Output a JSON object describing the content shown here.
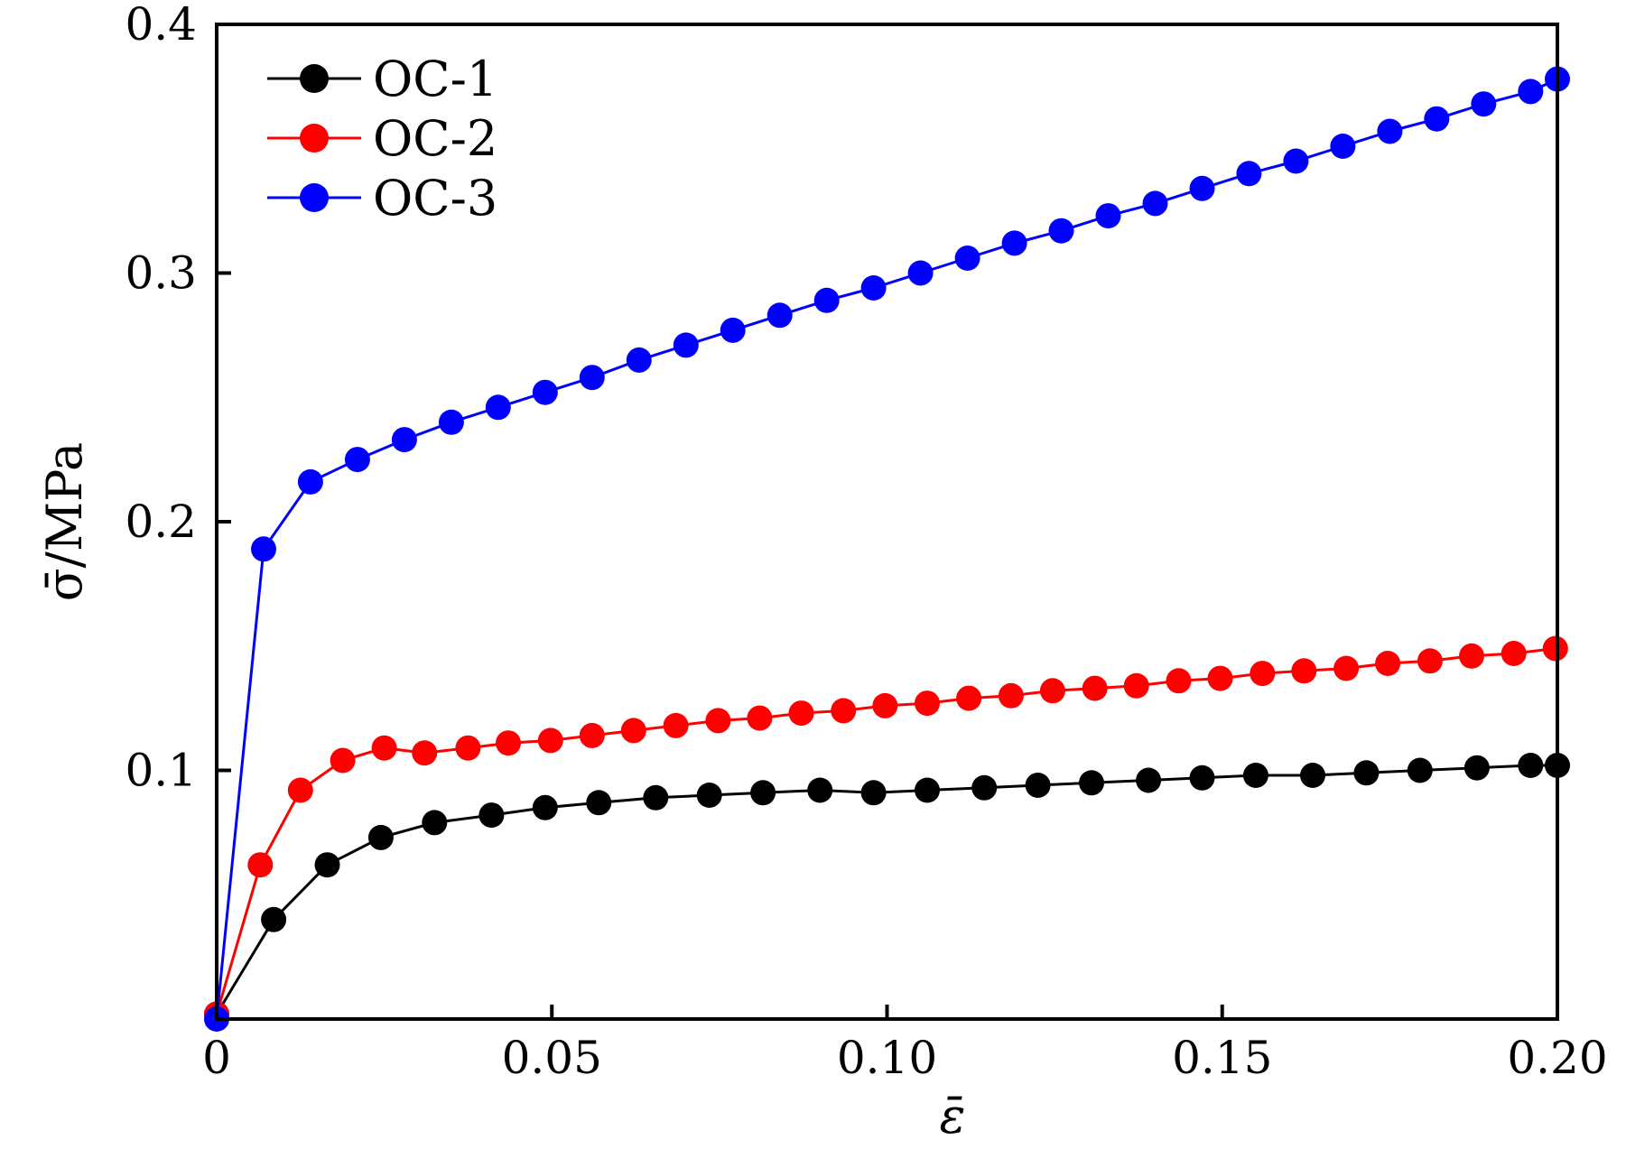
{
  "chart_data": {
    "type": "line",
    "title": "",
    "xlabel": "ε̄",
    "ylabel": "σ̄/MPa",
    "xlim": [
      0,
      0.2
    ],
    "ylim": [
      0,
      0.4
    ],
    "x_ticks": [
      {
        "value": 0,
        "label": "0"
      },
      {
        "value": 0.05,
        "label": "0.05"
      },
      {
        "value": 0.1,
        "label": "0.10"
      },
      {
        "value": 0.15,
        "label": "0.15"
      },
      {
        "value": 0.2,
        "label": "0.20"
      }
    ],
    "y_ticks": [
      {
        "value": 0.1,
        "label": "0.1"
      },
      {
        "value": 0.2,
        "label": "0.2"
      },
      {
        "value": 0.3,
        "label": "0.3"
      },
      {
        "value": 0.4,
        "label": "0.4"
      }
    ],
    "grid": false,
    "legend_position": "top-left",
    "series": [
      {
        "name": "OC-1",
        "color": "#000000",
        "x": [
          0,
          0.0085,
          0.0165,
          0.0245,
          0.0325,
          0.041,
          0.049,
          0.057,
          0.0655,
          0.0735,
          0.0815,
          0.09,
          0.098,
          0.106,
          0.1145,
          0.1225,
          0.1305,
          0.139,
          0.147,
          0.155,
          0.1635,
          0.1715,
          0.1795,
          0.188,
          0.196,
          0.2
        ],
        "y": [
          0.002,
          0.04,
          0.062,
          0.073,
          0.079,
          0.082,
          0.085,
          0.087,
          0.089,
          0.09,
          0.091,
          0.092,
          0.091,
          0.092,
          0.093,
          0.094,
          0.095,
          0.096,
          0.097,
          0.098,
          0.098,
          0.099,
          0.1,
          0.101,
          0.102,
          0.102
        ]
      },
      {
        "name": "OC-2",
        "color": "#ff0000",
        "x": [
          0,
          0.0065,
          0.0125,
          0.0188,
          0.025,
          0.031,
          0.0375,
          0.0435,
          0.0498,
          0.056,
          0.0622,
          0.0685,
          0.0748,
          0.081,
          0.0872,
          0.0935,
          0.0997,
          0.106,
          0.1122,
          0.1185,
          0.1247,
          0.131,
          0.1372,
          0.1435,
          0.1497,
          0.156,
          0.1622,
          0.1685,
          0.1747,
          0.181,
          0.1872,
          0.1935,
          0.1997
        ],
        "y": [
          0.002,
          0.062,
          0.092,
          0.104,
          0.109,
          0.107,
          0.109,
          0.111,
          0.112,
          0.114,
          0.116,
          0.118,
          0.12,
          0.121,
          0.123,
          0.124,
          0.126,
          0.127,
          0.129,
          0.13,
          0.132,
          0.133,
          0.134,
          0.136,
          0.137,
          0.139,
          0.14,
          0.141,
          0.143,
          0.144,
          0.146,
          0.147,
          0.149
        ]
      },
      {
        "name": "OC-3",
        "color": "#0000ff",
        "x": [
          0,
          0.007,
          0.014,
          0.021,
          0.028,
          0.035,
          0.042,
          0.049,
          0.056,
          0.063,
          0.07,
          0.077,
          0.084,
          0.091,
          0.098,
          0.105,
          0.112,
          0.119,
          0.126,
          0.133,
          0.14,
          0.147,
          0.154,
          0.161,
          0.168,
          0.175,
          0.182,
          0.189,
          0.196,
          0.2
        ],
        "y": [
          0.0,
          0.189,
          0.216,
          0.225,
          0.233,
          0.24,
          0.246,
          0.252,
          0.258,
          0.265,
          0.271,
          0.277,
          0.283,
          0.289,
          0.294,
          0.3,
          0.306,
          0.312,
          0.317,
          0.323,
          0.328,
          0.334,
          0.34,
          0.345,
          0.351,
          0.357,
          0.362,
          0.368,
          0.373,
          0.378
        ]
      }
    ]
  }
}
